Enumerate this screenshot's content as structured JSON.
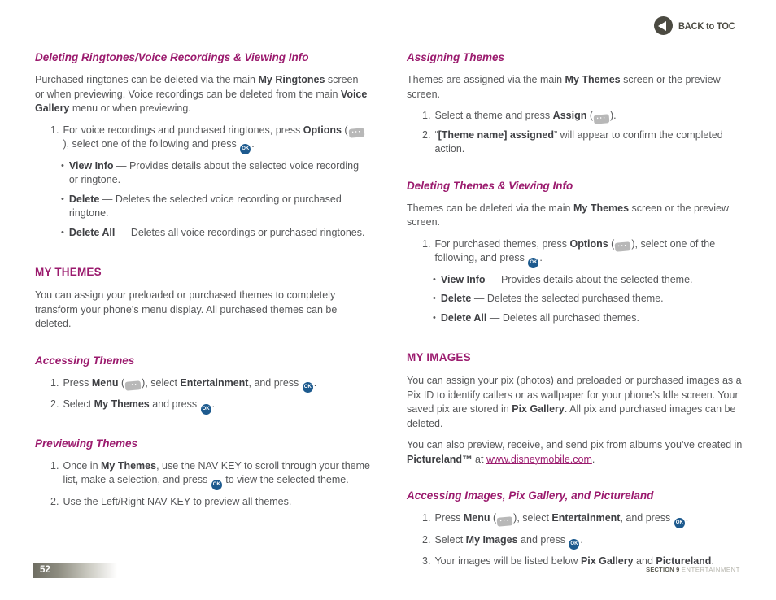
{
  "header": {
    "back_label": "BACK to TOC"
  },
  "icons": {
    "ok_label": "OK",
    "softkey_dots": "···",
    "bullet_char": "•",
    "back_icon": "left-arrow-in-circle"
  },
  "colors": {
    "accent_magenta": "#9b1b6e",
    "body_text": "#565759",
    "ok_key_blue": "#1d5a8e",
    "softkey_gray": "#b8b8b8",
    "header_footer_dark": "#4b4a41"
  },
  "columns": {
    "left": {
      "sections": [
        {
          "kind": "heading-italic",
          "text": "Deleting Ringtones/Voice Recordings & Viewing Info"
        },
        {
          "kind": "para",
          "segs": [
            {
              "t": "Purchased ringtones can be deleted via the main "
            },
            {
              "b": "My Ringtones"
            },
            {
              "t": " screen or when previewing. Voice recordings can be deleted from the main "
            },
            {
              "b": "Voice Gallery"
            },
            {
              "t": " menu or when previewing."
            }
          ]
        },
        {
          "kind": "list",
          "items": [
            {
              "marker": "1.",
              "segs": [
                {
                  "t": "For voice recordings and purchased ringtones, press "
                },
                {
                  "b": "Options"
                },
                {
                  "t": " ("
                },
                {
                  "i": "softkey"
                },
                {
                  "t": "), select one of the following and press "
                },
                {
                  "i": "ok"
                },
                {
                  "t": "."
                }
              ],
              "sub": [
                {
                  "segs": [
                    {
                      "b": "View Info"
                    },
                    {
                      "t": " — Provides details about the selected voice recording or ringtone."
                    }
                  ]
                },
                {
                  "segs": [
                    {
                      "b": "Delete"
                    },
                    {
                      "t": " — Deletes the selected voice recording or purchased ringtone."
                    }
                  ]
                },
                {
                  "segs": [
                    {
                      "b": "Delete All"
                    },
                    {
                      "t": " — Deletes all voice recordings or purchased ringtones."
                    }
                  ]
                }
              ]
            }
          ]
        },
        {
          "kind": "heading-caps",
          "text": "MY THEMES"
        },
        {
          "kind": "para",
          "segs": [
            {
              "t": "You can assign your preloaded or purchased themes to completely transform your phone’s menu display. All purchased themes can be deleted."
            }
          ]
        },
        {
          "kind": "heading-italic",
          "text": "Accessing Themes"
        },
        {
          "kind": "list",
          "items": [
            {
              "marker": "1.",
              "segs": [
                {
                  "t": "Press "
                },
                {
                  "b": "Menu"
                },
                {
                  "t": " ("
                },
                {
                  "i": "softkey"
                },
                {
                  "t": "), select "
                },
                {
                  "b": "Entertainment"
                },
                {
                  "t": ", and press "
                },
                {
                  "i": "ok"
                },
                {
                  "t": "."
                }
              ]
            },
            {
              "marker": "2.",
              "segs": [
                {
                  "t": "Select "
                },
                {
                  "b": "My Themes"
                },
                {
                  "t": " and press "
                },
                {
                  "i": "ok"
                },
                {
                  "t": "."
                }
              ]
            }
          ]
        },
        {
          "kind": "heading-italic",
          "text": "Previewing Themes"
        },
        {
          "kind": "list",
          "items": [
            {
              "marker": "1.",
              "segs": [
                {
                  "t": "Once in "
                },
                {
                  "b": "My Themes"
                },
                {
                  "t": ", use the NAV KEY to scroll through your theme list, make a selection, and press "
                },
                {
                  "i": "ok"
                },
                {
                  "t": " to view the selected theme."
                }
              ]
            },
            {
              "marker": "2.",
              "segs": [
                {
                  "t": "Use the Left/Right NAV KEY to preview all themes."
                }
              ]
            }
          ]
        }
      ]
    },
    "right": {
      "sections": [
        {
          "kind": "heading-italic",
          "text": "Assigning Themes"
        },
        {
          "kind": "para",
          "segs": [
            {
              "t": "Themes are assigned via the main "
            },
            {
              "b": "My Themes"
            },
            {
              "t": " screen or the preview screen."
            }
          ]
        },
        {
          "kind": "list",
          "items": [
            {
              "marker": "1.",
              "segs": [
                {
                  "t": "Select a theme and press "
                },
                {
                  "b": "Assign"
                },
                {
                  "t": " ("
                },
                {
                  "i": "softkey"
                },
                {
                  "t": ")."
                }
              ]
            },
            {
              "marker": "2.",
              "segs": [
                {
                  "t": "“"
                },
                {
                  "b": "[Theme name] assigned"
                },
                {
                  "t": "” will appear to confirm the completed action."
                }
              ]
            }
          ]
        },
        {
          "kind": "heading-italic",
          "text": "Deleting Themes & Viewing Info"
        },
        {
          "kind": "para",
          "segs": [
            {
              "t": "Themes can be deleted via the main "
            },
            {
              "b": "My Themes"
            },
            {
              "t": " screen or the preview screen."
            }
          ]
        },
        {
          "kind": "list",
          "items": [
            {
              "marker": "1.",
              "segs": [
                {
                  "t": "For purchased themes, press "
                },
                {
                  "b": "Options"
                },
                {
                  "t": " ("
                },
                {
                  "i": "softkey"
                },
                {
                  "t": "), select one of the following, and press "
                },
                {
                  "i": "ok"
                },
                {
                  "t": "."
                }
              ],
              "sub": [
                {
                  "segs": [
                    {
                      "b": "View Info"
                    },
                    {
                      "t": " — Provides details about the selected theme."
                    }
                  ]
                },
                {
                  "segs": [
                    {
                      "b": "Delete"
                    },
                    {
                      "t": " — Deletes the selected purchased theme."
                    }
                  ]
                },
                {
                  "segs": [
                    {
                      "b": "Delete All"
                    },
                    {
                      "t": " — Deletes all purchased themes."
                    }
                  ]
                }
              ]
            }
          ]
        },
        {
          "kind": "heading-caps",
          "text": "MY IMAGES"
        },
        {
          "kind": "para",
          "segs": [
            {
              "t": "You can assign your pix (photos) and preloaded or purchased images as a Pix ID to identify callers or as wallpaper for your phone’s Idle screen. Your saved pix are stored in "
            },
            {
              "b": "Pix Gallery"
            },
            {
              "t": ". All pix and purchased images can be deleted."
            }
          ]
        },
        {
          "kind": "para",
          "segs": [
            {
              "t": "You can also preview, receive, and send pix from albums you’ve created in "
            },
            {
              "b": "Pictureland™"
            },
            {
              "t": " at "
            },
            {
              "a": "www.disneymobile.com"
            },
            {
              "t": "."
            }
          ]
        },
        {
          "kind": "heading-italic",
          "text": "Accessing Images, Pix Gallery, and Pictureland"
        },
        {
          "kind": "list",
          "items": [
            {
              "marker": "1.",
              "segs": [
                {
                  "t": "Press "
                },
                {
                  "b": "Menu"
                },
                {
                  "t": " ("
                },
                {
                  "i": "softkey"
                },
                {
                  "t": "), select "
                },
                {
                  "b": "Entertainment"
                },
                {
                  "t": ", and press "
                },
                {
                  "i": "ok"
                },
                {
                  "t": "."
                }
              ]
            },
            {
              "marker": "2.",
              "segs": [
                {
                  "t": "Select "
                },
                {
                  "b": "My Images"
                },
                {
                  "t": " and press "
                },
                {
                  "i": "ok"
                },
                {
                  "t": "."
                }
              ]
            },
            {
              "marker": "3.",
              "segs": [
                {
                  "t": "Your images will be listed below "
                },
                {
                  "b": "Pix Gallery"
                },
                {
                  "t": " and "
                },
                {
                  "b": "Pictureland"
                },
                {
                  "t": "."
                }
              ]
            }
          ]
        }
      ]
    }
  },
  "footer": {
    "page_number": "52",
    "section_bold": "SECTION 9 ",
    "section_light": "ENTERTAINMENT"
  }
}
